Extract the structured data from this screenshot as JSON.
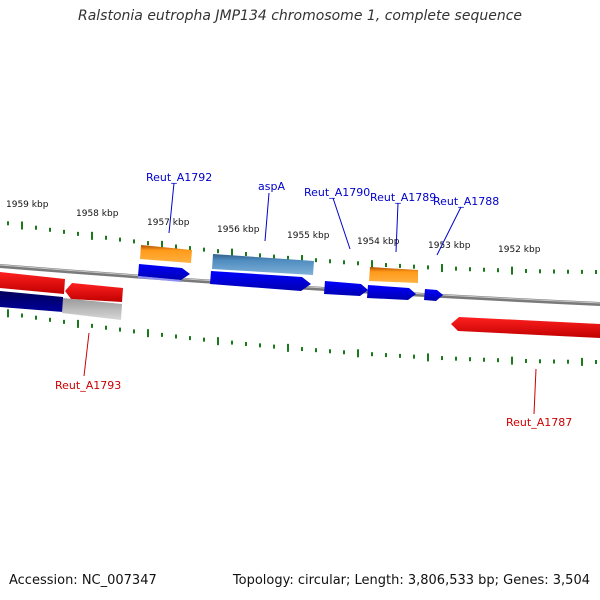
{
  "title": "Ralstonia eutropha JMP134 chromosome 1, complete sequence",
  "footer": {
    "accession": "Accession: NC_007347",
    "topology": "Topology: circular; Length: 3,806,533 bp; Genes: 3,504"
  },
  "ticks": [
    "1959 kbp",
    "1958 kbp",
    "1957 kbp",
    "1956 kbp",
    "1955 kbp",
    "1954 kbp",
    "1953 kbp",
    "1952 kbp"
  ],
  "gene_labels_forward": [
    "Reut_A1792",
    "aspA",
    "Reut_A1790",
    "Reut_A1789",
    "Reut_A1788"
  ],
  "gene_labels_reverse": [
    "Reut_A1793",
    "Reut_A1787"
  ],
  "colors": {
    "forward_label": "#0000cc",
    "reverse_label": "#cc0000",
    "blue_gene": "#0000ee",
    "red_gene": "#ee0000",
    "orange_gene": "#f08c00",
    "steelblue_gene": "#4682b4",
    "navy_gene": "#00007f",
    "gray_gene": "#b5b5b5",
    "tick": "#1a7a1a",
    "backbone": "#808080"
  }
}
